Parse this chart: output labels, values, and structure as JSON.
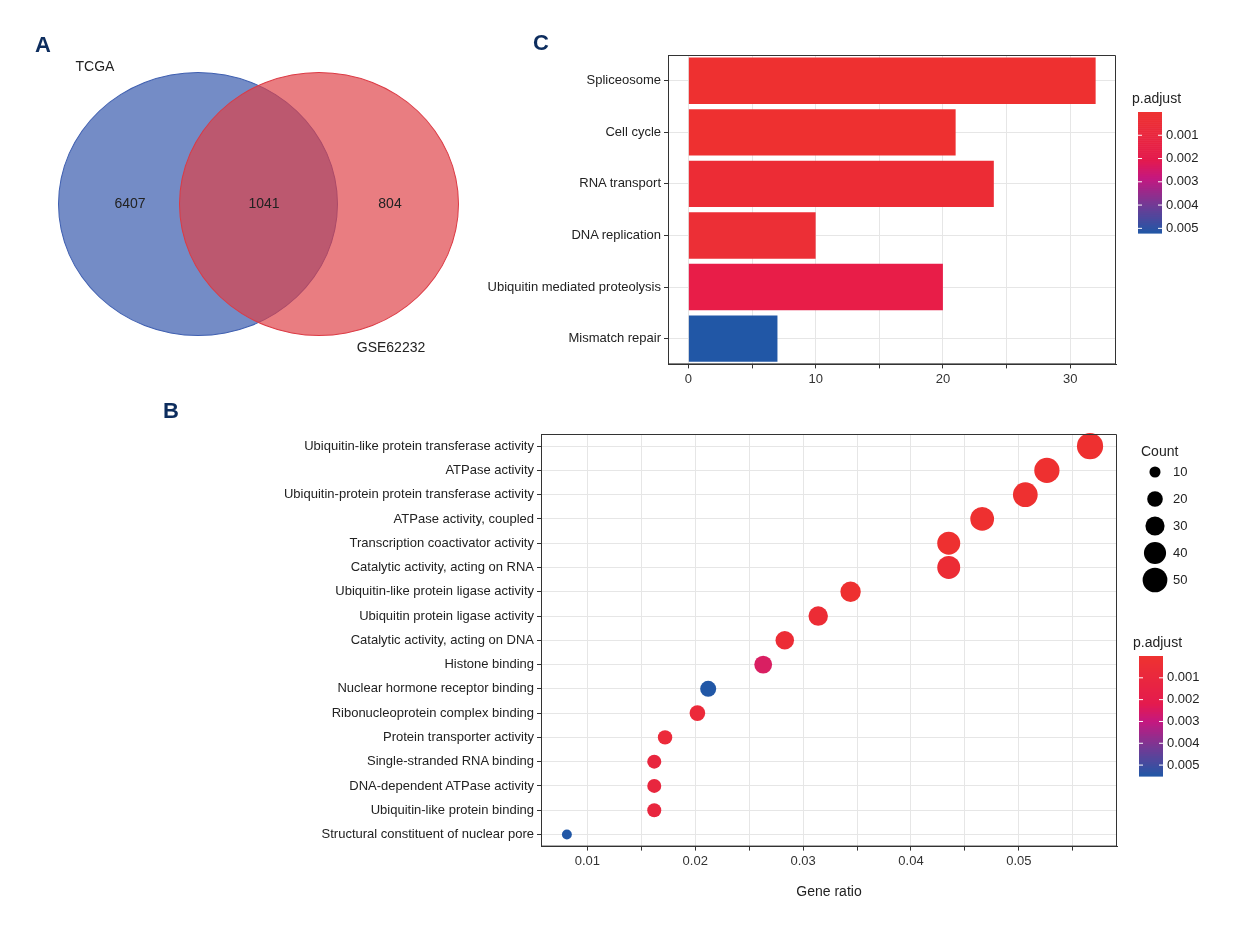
{
  "chart_data": [
    {
      "type": "other",
      "title": "A",
      "annotations": [
        "TCGA",
        "GSE62232",
        "6407",
        "1041",
        "804"
      ]
    },
    {
      "type": "bar",
      "title": "C",
      "orientation": "horizontal",
      "categories": [
        "Spliceosome",
        "Cell cycle",
        "RNA transport",
        "DNA replication",
        "Ubiquitin mediated proteolysis",
        "Mismatch repair"
      ],
      "values": [
        32,
        21,
        24,
        10,
        20,
        7
      ],
      "colors": [
        "#ee3030",
        "#ee3030",
        "#ec2c35",
        "#ec2f36",
        "#e81d48",
        "#2157a6"
      ],
      "xlim": [
        -1.6,
        33.6
      ],
      "xticks": [
        0,
        {
          "value": 5,
          "label": null
        },
        10,
        {
          "value": 15,
          "label": null
        },
        20,
        {
          "value": 25,
          "label": null
        },
        30
      ],
      "clabel": "p.adjust",
      "clim": [
        0,
        0.0052
      ],
      "cticks": [
        0.001,
        0.002,
        0.003,
        0.004,
        0.005
      ],
      "grid": true
    },
    {
      "type": "bubble",
      "title": "B",
      "orientation": "horizontal",
      "categories": [
        "Ubiquitin-like protein transferase activity",
        "ATPase activity",
        "Ubiquitin-protein protein transferase activity",
        "ATPase activity, coupled",
        "Transcription coactivator activity",
        "Catalytic activity, acting on RNA",
        "Ubiquitin-like protein ligase activity",
        "Ubiquitin protein ligase activity",
        "Catalytic activity, acting on DNA",
        "Histone binding",
        "Nuclear hormone receptor binding",
        "Ribonucleoprotein complex binding",
        "Protein transporter activity",
        "Single-stranded RNA binding",
        "DNA-dependent ATPase activity",
        "Ubiquitin-like protein binding",
        "Structural constituent of nuclear pore"
      ],
      "values": [
        0.0566,
        0.0526,
        0.0506,
        0.0466,
        0.0435,
        0.0435,
        0.0344,
        0.0314,
        0.0283,
        0.0263,
        0.0212,
        0.0202,
        0.0172,
        0.0162,
        0.0162,
        0.0162,
        0.0081
      ],
      "sizes": [
        56,
        52,
        50,
        46,
        43,
        43,
        34,
        31,
        28,
        26,
        21,
        20,
        17,
        16,
        16,
        16,
        8
      ],
      "size_legend": [
        10,
        20,
        30,
        40,
        50
      ],
      "legend_title": "Count",
      "colors": [
        "#ee3030",
        "#ee3030",
        "#ee3030",
        "#ee3030",
        "#ee3030",
        "#ec2c35",
        "#ee3030",
        "#ec2c35",
        "#ec2c35",
        "#d91f62",
        "#2157a6",
        "#ec2a3a",
        "#ec2a3a",
        "#e8263e",
        "#e8263e",
        "#e8263e",
        "#2157a6"
      ],
      "xlim": [
        0.0057,
        0.0591
      ],
      "xticks": [
        0.01,
        {
          "value": 0.015,
          "label": null
        },
        0.02,
        {
          "value": 0.025,
          "label": null
        },
        0.03,
        {
          "value": 0.035,
          "label": null
        },
        0.04,
        {
          "value": 0.045,
          "label": null
        },
        0.05,
        {
          "value": 0.055,
          "label": null
        }
      ],
      "xlabel": "Gene ratio",
      "clabel": "p.adjust",
      "clim": [
        0,
        0.0055
      ],
      "cticks": [
        0.001,
        0.002,
        0.003,
        0.004,
        0.005
      ],
      "grid": true
    }
  ]
}
